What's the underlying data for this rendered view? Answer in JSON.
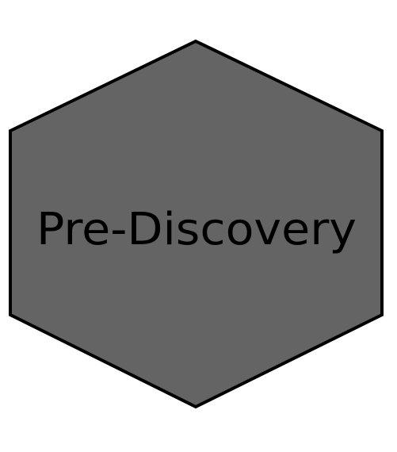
{
  "badge": {
    "label": "Pre-Discovery",
    "fill_color": "#646464",
    "stroke_color": "#000000",
    "text_color": "#000000",
    "shape": "hexagon"
  }
}
